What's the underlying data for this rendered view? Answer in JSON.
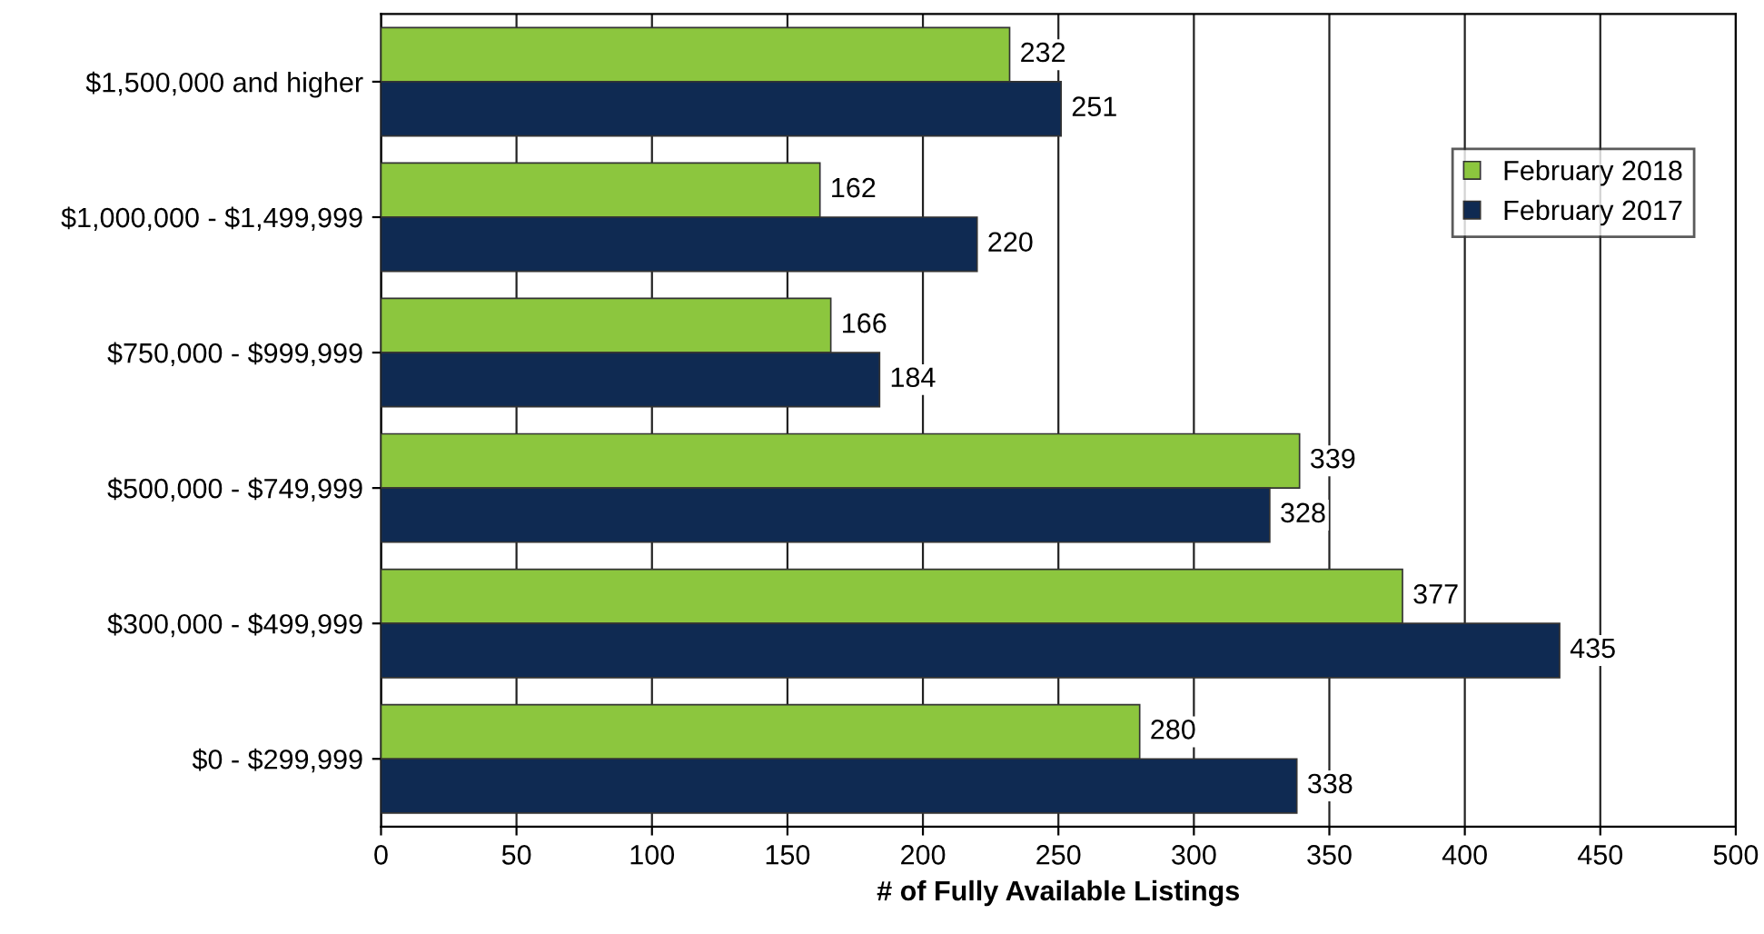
{
  "chart_data": {
    "type": "bar",
    "orientation": "horizontal",
    "xlabel": "# of Fully Available Listings",
    "categories": [
      "$1,500,000 and higher",
      "$1,000,000 - $1,499,999",
      "$750,000 - $999,999",
      "$500,000 - $749,999",
      "$300,000 - $499,999",
      "$0 - $299,999"
    ],
    "series": [
      {
        "name": "February 2018",
        "color": "#8cc63e",
        "values": [
          232,
          162,
          166,
          339,
          377,
          280
        ]
      },
      {
        "name": "February 2017",
        "color": "#0f2a52",
        "values": [
          251,
          220,
          184,
          328,
          435,
          338
        ]
      }
    ],
    "xlim": [
      0,
      500
    ],
    "xticks": [
      0,
      50,
      100,
      150,
      200,
      250,
      300,
      350,
      400,
      450,
      500
    ],
    "grid": "x",
    "legend": "right",
    "data_labels": true
  }
}
